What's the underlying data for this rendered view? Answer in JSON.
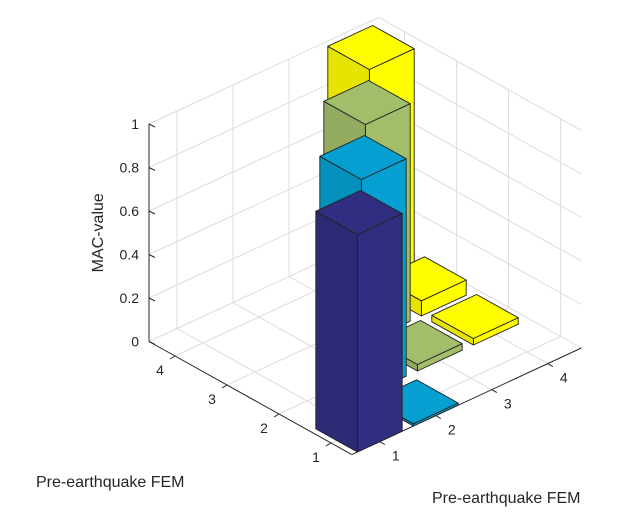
{
  "chart_data": {
    "type": "bar3",
    "x_label": "Pre-earthquake FEM",
    "y_label": "Pre-earthquake FEM",
    "z_label": "MAC-value",
    "x_ticks": [
      "1",
      "2",
      "3",
      "4"
    ],
    "y_ticks": [
      "1",
      "2",
      "3",
      "4"
    ],
    "z_ticks": [
      "0",
      "0.2",
      "0.4",
      "0.6",
      "0.8",
      "1"
    ],
    "zlim": [
      0,
      1
    ],
    "grid": true,
    "colors": [
      "#312e82",
      "#069fd1",
      "#a2be6a",
      "#fffd00"
    ],
    "matrix": [
      [
        1.0,
        0.01,
        0.0,
        0.0
      ],
      [
        0.0,
        1.0,
        0.03,
        0.03
      ],
      [
        0.0,
        0.0,
        1.0,
        0.07
      ],
      [
        0.0,
        0.0,
        0.0,
        1.0
      ]
    ]
  }
}
